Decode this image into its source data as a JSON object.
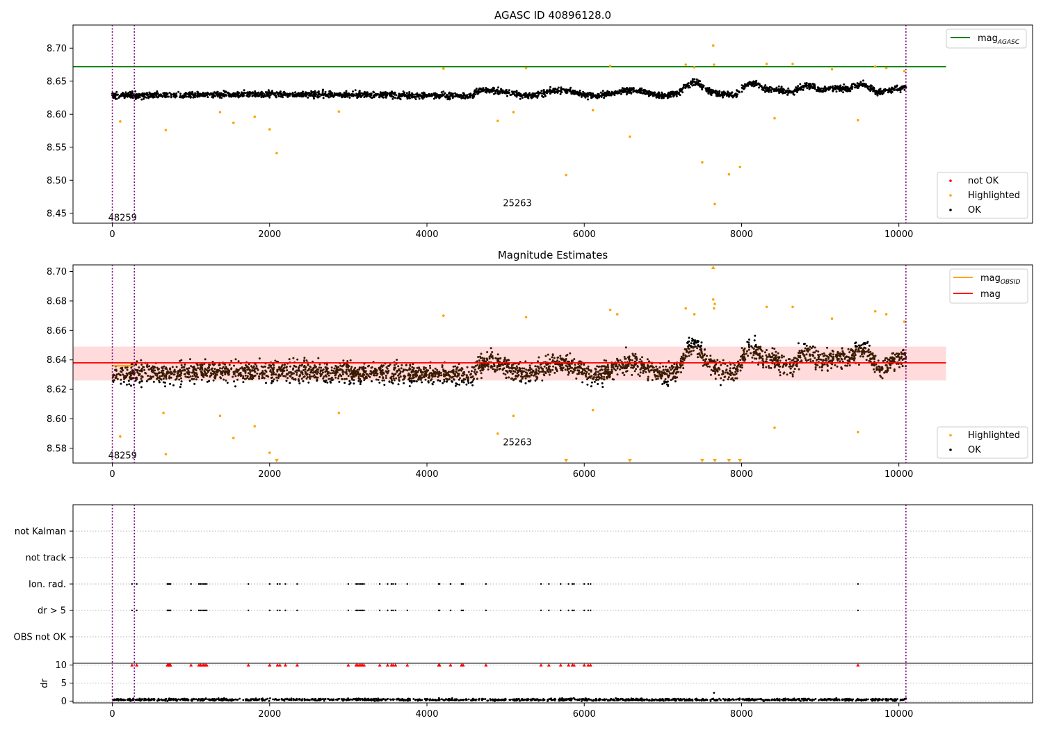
{
  "chart_data": [
    {
      "type": "scatter",
      "title": "AGASC ID 40896128.0",
      "xlabel": "",
      "ylabel": "",
      "xlim": [
        -500,
        11700
      ],
      "ylim": [
        8.435,
        8.735
      ],
      "xticks": [
        0,
        2000,
        4000,
        6000,
        8000,
        10000
      ],
      "yticks": [
        8.45,
        8.5,
        8.55,
        8.6,
        8.65,
        8.7
      ],
      "ytick_labels": [
        "8.45",
        "8.50",
        "8.55",
        "8.60",
        "8.65",
        "8.70"
      ],
      "grid": false,
      "reference_lines": [
        {
          "y": 8.672,
          "x_range": [
            -500,
            10600
          ],
          "color": "#008000"
        }
      ],
      "vertical_lines": [
        0,
        280,
        10090
      ],
      "obsid_annotations": [
        {
          "text": "48259",
          "x": 130,
          "y": 8.443
        },
        {
          "text": "25263",
          "x": 5150,
          "y": 8.465
        }
      ],
      "ok_band": {
        "x": [
          0,
          10090
        ],
        "base": 8.628,
        "amplitude": 0.008,
        "min": 8.607,
        "max": 8.667
      },
      "highlighted": [
        [
          100,
          8.589
        ],
        [
          680,
          8.576
        ],
        [
          1370,
          8.603
        ],
        [
          1540,
          8.587
        ],
        [
          1810,
          8.596
        ],
        [
          2000,
          8.577
        ],
        [
          2090,
          8.541
        ],
        [
          2880,
          8.604
        ],
        [
          4210,
          8.669
        ],
        [
          4900,
          8.59
        ],
        [
          5100,
          8.603
        ],
        [
          5260,
          8.67
        ],
        [
          5770,
          8.508
        ],
        [
          6110,
          8.606
        ],
        [
          6330,
          8.673
        ],
        [
          6580,
          8.566
        ],
        [
          7290,
          8.675
        ],
        [
          7400,
          8.671
        ],
        [
          7500,
          8.527
        ],
        [
          7640,
          8.704
        ],
        [
          7650,
          8.675
        ],
        [
          7660,
          8.464
        ],
        [
          7840,
          8.509
        ],
        [
          7980,
          8.52
        ],
        [
          8320,
          8.676
        ],
        [
          8420,
          8.594
        ],
        [
          8650,
          8.676
        ],
        [
          9150,
          8.668
        ],
        [
          9480,
          8.591
        ],
        [
          9700,
          8.672
        ],
        [
          9840,
          8.67
        ],
        [
          10070,
          8.665
        ]
      ],
      "not_ok": [],
      "legend_top": [
        {
          "label": "mag",
          "subscript": "AGASC",
          "color": "#008000"
        }
      ],
      "legend_bottom": [
        {
          "label": "not OK",
          "color": "#ff0000"
        },
        {
          "label": "Highlighted",
          "color": "#ffa500"
        },
        {
          "label": "OK",
          "color": "#000000"
        }
      ]
    },
    {
      "type": "scatter",
      "title": "Magnitude Estimates",
      "xlabel": "",
      "ylabel": "",
      "xlim": [
        -500,
        11700
      ],
      "ylim": [
        8.57,
        8.7045
      ],
      "xticks": [
        0,
        2000,
        4000,
        6000,
        8000,
        10000
      ],
      "yticks": [
        8.58,
        8.6,
        8.62,
        8.64,
        8.66,
        8.68,
        8.7
      ],
      "ytick_labels": [
        "8.58",
        "8.60",
        "8.62",
        "8.64",
        "8.66",
        "8.68",
        "8.70"
      ],
      "grid": false,
      "mean_line": {
        "y": 8.638,
        "x_range": [
          -500,
          10600
        ],
        "color": "#ff0000"
      },
      "std_band": {
        "y_range": [
          8.626,
          8.649
        ],
        "x_range": [
          -500,
          10600
        ],
        "color": "#ffb0b0"
      },
      "obsid_segment": {
        "y": 8.636,
        "x_range": [
          0,
          280
        ],
        "color": "#ffa500"
      },
      "vertical_lines": [
        0,
        280,
        10090
      ],
      "obsid_annotations": [
        {
          "text": "48259",
          "x": 130,
          "y": 8.575
        },
        {
          "text": "25263",
          "x": 5150,
          "y": 8.584
        }
      ],
      "ok_band": {
        "x": [
          0,
          10090
        ],
        "base": 8.63,
        "amplitude": 0.012,
        "min": 8.607,
        "max": 8.668
      },
      "highlighted": [
        [
          100,
          8.588
        ],
        [
          680,
          8.576
        ],
        [
          650,
          8.604
        ],
        [
          1370,
          8.602
        ],
        [
          1540,
          8.587
        ],
        [
          1810,
          8.595
        ],
        [
          2000,
          8.577
        ],
        [
          2880,
          8.604
        ],
        [
          4210,
          8.67
        ],
        [
          4900,
          8.59
        ],
        [
          5100,
          8.602
        ],
        [
          5260,
          8.669
        ],
        [
          6110,
          8.606
        ],
        [
          6330,
          8.674
        ],
        [
          6420,
          8.671
        ],
        [
          7290,
          8.675
        ],
        [
          7400,
          8.671
        ],
        [
          7640,
          8.681
        ],
        [
          7650,
          8.675
        ],
        [
          7660,
          8.678
        ],
        [
          8320,
          8.676
        ],
        [
          8420,
          8.594
        ],
        [
          8650,
          8.676
        ],
        [
          9150,
          8.668
        ],
        [
          9480,
          8.591
        ],
        [
          9700,
          8.673
        ],
        [
          9840,
          8.671
        ],
        [
          10070,
          8.666
        ]
      ],
      "clipped_low_x": [
        2090,
        5770,
        6580,
        7500,
        7660,
        7840,
        7980
      ],
      "clipped_high_x": [
        7640
      ],
      "legend_top": [
        {
          "label": "mag",
          "subscript": "OBSID",
          "color": "#ffa500"
        },
        {
          "label": "mag",
          "subscript": "",
          "color": "#ff0000"
        }
      ],
      "legend_bottom": [
        {
          "label": "Highlighted",
          "color": "#ffa500"
        },
        {
          "label": "OK",
          "color": "#000000"
        }
      ]
    },
    {
      "type": "scatter",
      "title": "",
      "xlabel": "",
      "ylabel": "",
      "xlim": [
        -500,
        11700
      ],
      "categories": [
        "not Kalman",
        "not track",
        "Ion. rad.",
        "dr > 5",
        "OBS not OK"
      ],
      "grid": true,
      "vertical_lines": [
        0,
        280,
        10090
      ],
      "flag_times": {
        "Ion. rad.": [
          250,
          310,
          700,
          710,
          720,
          730,
          740,
          1000,
          1100,
          1120,
          1140,
          1160,
          1180,
          1200,
          1730,
          2000,
          2100,
          2130,
          2200,
          2350,
          3000,
          3100,
          3120,
          3140,
          3160,
          3180,
          3200,
          3400,
          3500,
          3550,
          3570,
          3600,
          3750,
          4150,
          4160,
          4300,
          4440,
          4460,
          4750,
          5450,
          5550,
          5700,
          5800,
          5850,
          5870,
          6000,
          6050,
          6080,
          9480
        ],
        "dr > 5": [
          250,
          310,
          700,
          710,
          720,
          730,
          740,
          1000,
          1100,
          1120,
          1140,
          1160,
          1180,
          1200,
          1730,
          2000,
          2100,
          2130,
          2200,
          2350,
          3000,
          3100,
          3120,
          3140,
          3160,
          3180,
          3200,
          3400,
          3500,
          3550,
          3570,
          3600,
          3750,
          4150,
          4160,
          4300,
          4440,
          4460,
          4750,
          5450,
          5550,
          5700,
          5800,
          5850,
          5870,
          6000,
          6050,
          6080,
          9480
        ]
      }
    },
    {
      "type": "scatter",
      "title": "",
      "xlabel": "",
      "ylabel": "dr",
      "xlim": [
        -500,
        11700
      ],
      "ylim": [
        -0.5,
        10.5
      ],
      "xticks": [
        0,
        2000,
        4000,
        6000,
        8000,
        10000
      ],
      "yticks": [
        0,
        5,
        10
      ],
      "grid": true,
      "vertical_lines": [
        0,
        280,
        10090
      ],
      "dr_base": 0.4,
      "dr_outliers": [
        [
          7650,
          2.3
        ]
      ],
      "clipped_high_x": [
        250,
        310,
        700,
        710,
        720,
        730,
        740,
        1000,
        1100,
        1120,
        1140,
        1160,
        1180,
        1200,
        1730,
        2000,
        2100,
        2130,
        2200,
        2350,
        3000,
        3100,
        3120,
        3140,
        3160,
        3180,
        3200,
        3400,
        3500,
        3550,
        3570,
        3600,
        3750,
        4150,
        4160,
        4300,
        4440,
        4460,
        4750,
        5450,
        5550,
        5700,
        5800,
        5850,
        5870,
        6000,
        6050,
        6080,
        9480
      ]
    }
  ]
}
